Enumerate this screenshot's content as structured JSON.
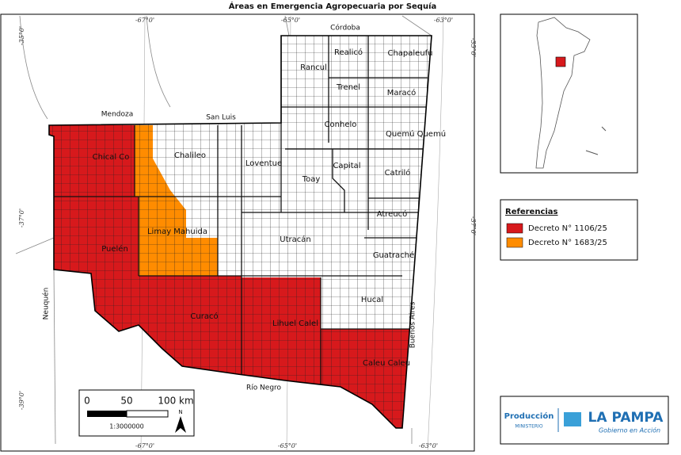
{
  "title": "Áreas en Emergencia Agropecuaria por Sequía",
  "map": {
    "departments": [
      "Rancul",
      "Realicó",
      "Chapaleufú",
      "Trenel",
      "Maracó",
      "Conhelo",
      "Quemú Quemú",
      "Chalileo",
      "Chical Co",
      "Loventue",
      "Capital",
      "Catriló",
      "Toay",
      "Atreucó",
      "Limay Mahuida",
      "Utracán",
      "Puelén",
      "Guatraché",
      "Hucal",
      "Curacó",
      "Lihuel Calel",
      "Caleu Caleu"
    ],
    "neighbors": [
      "Córdoba",
      "Mendoza",
      "San Luis",
      "Neuquén",
      "Río Negro",
      "Buenos Aires"
    ],
    "graticule": {
      "top": [
        "-67°0'",
        "-65°0'",
        "-63°0'"
      ],
      "bottom": [
        "-67°0'",
        "-65°0'",
        "-63°0'"
      ],
      "left": [
        "-35°0'",
        "-37°0'",
        "-39°0'"
      ],
      "right": [
        "-35°0'",
        "-37°0'"
      ]
    }
  },
  "scale_bar": {
    "labels": [
      "0",
      "50",
      "100 km"
    ],
    "ratio": "1:3000000",
    "north": "N"
  },
  "legend": {
    "title": "Referencias",
    "items": [
      "Decreto N° 1106/25",
      "Decreto N° 1683/25"
    ]
  },
  "logo": {
    "line1": "Producción",
    "line2": "MINISTERIO",
    "brand": "LA PAMPA",
    "tagline": "Gobierno en Acción"
  }
}
